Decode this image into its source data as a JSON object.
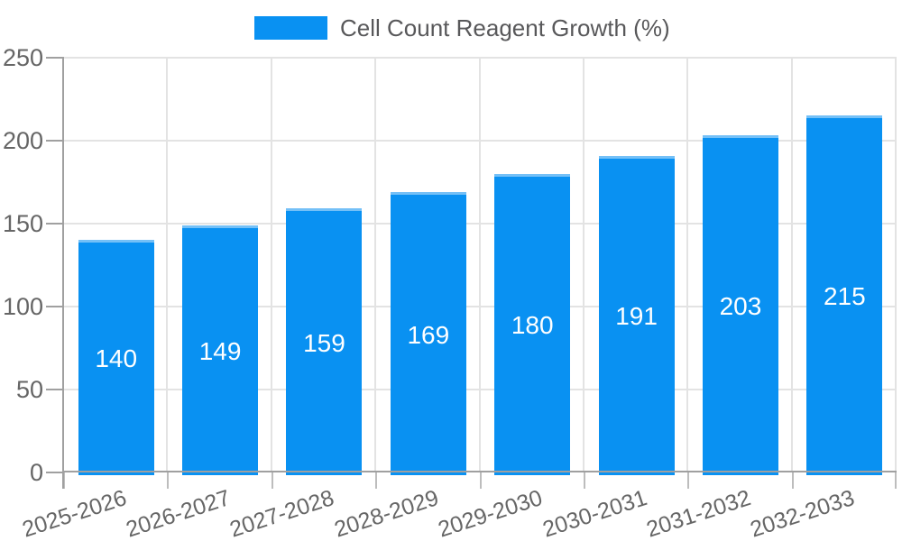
{
  "chart_data": {
    "type": "bar",
    "legend": {
      "label": "Cell Count Reagent Growth (%)",
      "position": "top-center"
    },
    "categories": [
      "2025-2026",
      "2026-2027",
      "2027-2028",
      "2028-2029",
      "2029-2030",
      "2030-2031",
      "2031-2032",
      "2032-2033"
    ],
    "series": [
      {
        "name": "Cell Count Reagent Growth (%)",
        "color": "#0991f2",
        "border_top_color": "#74c0f7",
        "values": [
          140,
          149,
          159,
          169,
          180,
          191,
          203,
          215
        ]
      }
    ],
    "value_labels": {
      "visible": true,
      "color": "#ffffff",
      "position": "inside-center"
    },
    "ylim": [
      0,
      250
    ],
    "yticks": [
      0,
      50,
      100,
      150,
      200,
      250
    ],
    "grid": true,
    "x_label_rotation_deg": -18
  },
  "colors": {
    "background": "#ffffff",
    "grid": "#e3e3e3",
    "axis": "#a0a0a0",
    "tick": "#bdbdbd",
    "tick_text": "#666666",
    "legend_text": "#58585a"
  }
}
